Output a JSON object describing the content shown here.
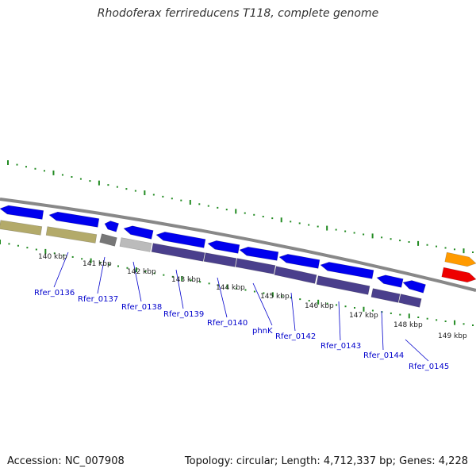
{
  "title": "Rhodoferax ferrireducens T118, complete genome",
  "accession": "Accession: NC_007908",
  "summary": "Topology: circular; Length: 4,712,337 bp; Genes: 4,228",
  "colors": {
    "forward_gene": "#0000ee",
    "reverse_gene": "#4a3f8c",
    "olive_block": "#b3aa6a",
    "grey_block": "#777777",
    "light_grey_block": "#bbbbbb",
    "orange_gene": "#ff9a00",
    "red_gene": "#ee0000",
    "ruler_ticks": "#228b22",
    "backbone": "#888888",
    "label_text": "#0000cc"
  },
  "kbp_ticks": [
    "140 kbp",
    "141 kbp",
    "142 kbp",
    "143 kbp",
    "144 kbp",
    "145 kbp",
    "146 kbp",
    "147 kbp",
    "148 kbp",
    "149 kbp"
  ],
  "gene_labels": [
    "Rfer_0136",
    "Rfer_0137",
    "Rfer_0138",
    "Rfer_0139",
    "Rfer_0140",
    "phnK",
    "Rfer_0142",
    "Rfer_0143",
    "Rfer_0144",
    "Rfer_0145"
  ]
}
